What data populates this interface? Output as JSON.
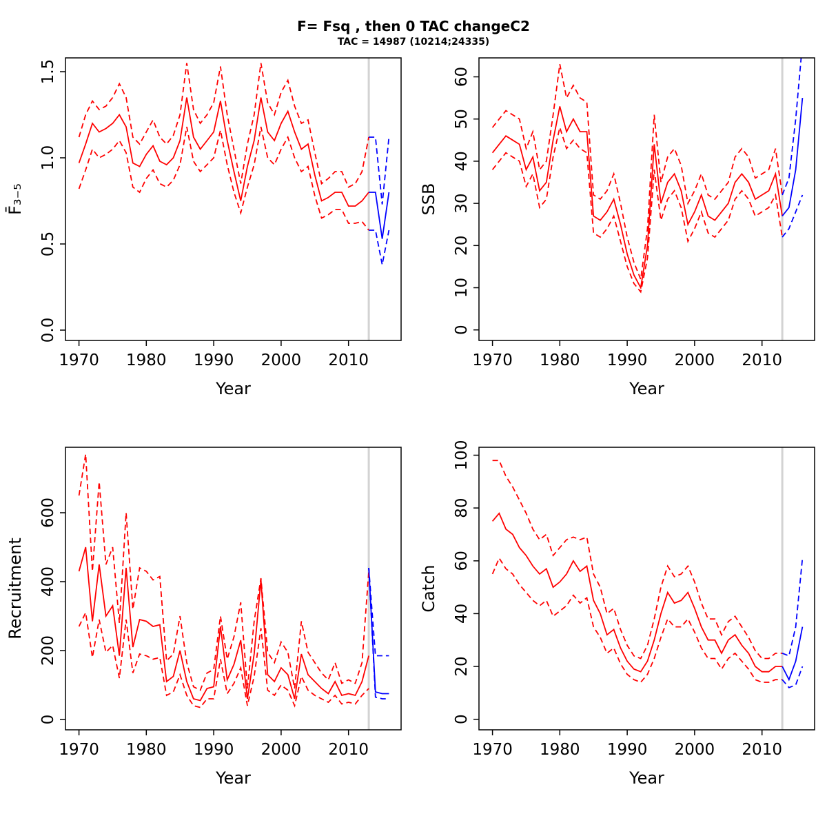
{
  "title": "F= Fsq , then 0 TAC changeC2",
  "subtitle": "TAC = 14987 (10214;24335)",
  "chart_data": {
    "type": "line",
    "layout": "2x2 panel grid, shared x axis style",
    "xlabel": "Year",
    "xlim": [
      1968,
      2017.8
    ],
    "x_ticks": [
      1970,
      1980,
      1990,
      2000,
      2010
    ],
    "hist_start_year": 1970,
    "proj_start_year": 2013,
    "divider_year": 2013,
    "colors": {
      "historical": "#ff0000",
      "projection": "#0000ff",
      "divider": "#d3d3d3",
      "axis": "#000000"
    },
    "panels": [
      {
        "name": "fbar",
        "ylabel": "F̄₃₋₅",
        "ylim": [
          -0.06,
          1.58
        ],
        "y_ticks": [
          0,
          0.5,
          1.0,
          1.5
        ],
        "y_tick_labels": [
          "0.0",
          "0.5",
          "1.0",
          "1.5"
        ],
        "hist": {
          "median": [
            0.97,
            1.08,
            1.2,
            1.15,
            1.17,
            1.2,
            1.25,
            1.18,
            0.97,
            0.95,
            1.02,
            1.07,
            0.98,
            0.96,
            1.0,
            1.1,
            1.35,
            1.12,
            1.05,
            1.1,
            1.15,
            1.33,
            1.1,
            0.92,
            0.75,
            0.95,
            1.1,
            1.35,
            1.15,
            1.1,
            1.2,
            1.27,
            1.15,
            1.05,
            1.08,
            0.9,
            0.75,
            0.77,
            0.8,
            0.8,
            0.72,
            0.72,
            0.75,
            0.8
          ],
          "hi": [
            1.12,
            1.25,
            1.33,
            1.28,
            1.3,
            1.35,
            1.43,
            1.35,
            1.12,
            1.08,
            1.15,
            1.22,
            1.12,
            1.08,
            1.13,
            1.25,
            1.55,
            1.28,
            1.2,
            1.25,
            1.32,
            1.53,
            1.25,
            1.05,
            0.85,
            1.08,
            1.25,
            1.55,
            1.32,
            1.25,
            1.38,
            1.45,
            1.3,
            1.2,
            1.22,
            1.03,
            0.85,
            0.88,
            0.92,
            0.92,
            0.83,
            0.85,
            0.92,
            1.12
          ],
          "lo": [
            0.82,
            0.93,
            1.05,
            1.0,
            1.02,
            1.05,
            1.1,
            1.03,
            0.83,
            0.8,
            0.88,
            0.93,
            0.85,
            0.83,
            0.87,
            0.96,
            1.18,
            0.98,
            0.92,
            0.96,
            1.0,
            1.16,
            0.96,
            0.8,
            0.68,
            0.83,
            0.96,
            1.18,
            1.0,
            0.96,
            1.05,
            1.12,
            1.0,
            0.92,
            0.95,
            0.78,
            0.65,
            0.67,
            0.7,
            0.7,
            0.62,
            0.62,
            0.63,
            0.58
          ]
        },
        "proj": {
          "median": [
            0.8,
            0.8,
            0.53,
            0.8
          ],
          "hi": [
            1.12,
            1.12,
            0.73,
            1.12
          ],
          "lo": [
            0.58,
            0.58,
            0.38,
            0.58
          ]
        }
      },
      {
        "name": "ssb",
        "ylabel": "SSB",
        "ylim": [
          -2.5,
          64.5
        ],
        "y_ticks": [
          0,
          10,
          20,
          30,
          40,
          50,
          60
        ],
        "y_tick_labels": [
          "0",
          "10",
          "20",
          "30",
          "40",
          "50",
          "60"
        ],
        "hist": {
          "median": [
            42,
            44,
            46,
            45,
            44,
            38,
            41,
            33,
            35,
            45,
            53,
            47,
            50,
            47,
            47,
            27,
            26,
            28,
            31,
            25,
            18,
            13,
            10,
            20,
            44,
            30,
            35,
            37,
            33,
            25,
            28,
            32,
            27,
            26,
            28,
            30,
            35,
            37,
            35,
            31,
            32,
            33,
            37,
            27
          ],
          "hi": [
            48,
            50,
            52,
            51,
            50,
            43,
            47,
            38,
            40,
            51,
            63,
            55,
            58,
            55,
            54,
            32,
            31,
            33,
            37,
            30,
            22,
            16,
            12,
            24,
            51,
            35,
            41,
            43,
            39,
            30,
            33,
            37,
            32,
            31,
            33,
            35,
            41,
            43,
            41,
            36,
            37,
            38,
            43,
            32
          ],
          "lo": [
            38,
            40,
            42,
            41,
            40,
            34,
            37,
            29,
            31,
            41,
            48,
            43,
            45,
            43,
            42,
            23,
            22,
            24,
            27,
            21,
            15,
            11,
            9,
            17,
            38,
            26,
            31,
            33,
            29,
            21,
            24,
            28,
            23,
            22,
            24,
            26,
            31,
            33,
            31,
            27,
            28,
            29,
            32,
            22
          ]
        },
        "proj": {
          "median": [
            27,
            29,
            38,
            55
          ],
          "hi": [
            32,
            36,
            50,
            68
          ],
          "lo": [
            22,
            24,
            28,
            32
          ]
        }
      },
      {
        "name": "recruitment",
        "ylabel": "Recruitment",
        "ylim": [
          -30,
          790
        ],
        "y_ticks": [
          0,
          200,
          400,
          600
        ],
        "y_tick_labels": [
          "0",
          "200",
          "400",
          "600"
        ],
        "hist": {
          "median": [
            430,
            500,
            285,
            450,
            300,
            330,
            185,
            440,
            210,
            290,
            285,
            270,
            275,
            110,
            125,
            200,
            110,
            60,
            55,
            90,
            95,
            270,
            115,
            160,
            230,
            60,
            190,
            405,
            130,
            110,
            150,
            130,
            60,
            190,
            130,
            110,
            90,
            75,
            110,
            70,
            75,
            70,
            110,
            185
          ],
          "hi": [
            650,
            770,
            430,
            690,
            450,
            500,
            280,
            600,
            320,
            440,
            430,
            405,
            415,
            170,
            190,
            300,
            165,
            95,
            85,
            135,
            145,
            300,
            175,
            240,
            340,
            90,
            285,
            410,
            195,
            165,
            225,
            195,
            90,
            285,
            195,
            165,
            135,
            115,
            165,
            105,
            115,
            105,
            165,
            430
          ],
          "lo": [
            270,
            310,
            180,
            290,
            195,
            215,
            120,
            290,
            135,
            190,
            185,
            175,
            180,
            70,
            80,
            130,
            70,
            40,
            35,
            60,
            60,
            175,
            75,
            105,
            150,
            40,
            125,
            265,
            85,
            70,
            100,
            85,
            40,
            125,
            85,
            70,
            60,
            50,
            70,
            45,
            50,
            45,
            70,
            90
          ]
        },
        "proj": {
          "median": [
            440,
            80,
            75,
            75
          ],
          "hi": [
            440,
            185,
            185,
            185
          ],
          "lo": [
            440,
            65,
            60,
            60
          ]
        }
      },
      {
        "name": "catch",
        "ylabel": "Catch",
        "ylim": [
          -4,
          103
        ],
        "y_ticks": [
          0,
          20,
          40,
          60,
          80,
          100
        ],
        "y_tick_labels": [
          "0",
          "20",
          "40",
          "60",
          "80",
          "100"
        ],
        "hist": {
          "median": [
            75,
            78,
            72,
            70,
            65,
            62,
            58,
            55,
            57,
            50,
            52,
            55,
            60,
            56,
            58,
            45,
            40,
            32,
            34,
            27,
            22,
            19,
            18,
            22,
            30,
            40,
            48,
            44,
            45,
            48,
            42,
            35,
            30,
            30,
            25,
            30,
            32,
            28,
            25,
            20,
            18,
            18,
            20,
            20
          ],
          "hi": [
            98,
            98,
            92,
            88,
            83,
            78,
            72,
            68,
            70,
            62,
            65,
            68,
            69,
            68,
            69,
            55,
            50,
            40,
            42,
            34,
            28,
            24,
            23,
            28,
            38,
            50,
            58,
            54,
            55,
            58,
            52,
            44,
            38,
            38,
            32,
            37,
            39,
            35,
            31,
            26,
            23,
            23,
            25,
            25
          ],
          "lo": [
            55,
            61,
            57,
            55,
            51,
            48,
            45,
            43,
            45,
            39,
            41,
            43,
            47,
            44,
            46,
            35,
            31,
            25,
            27,
            21,
            17,
            15,
            14,
            17,
            23,
            31,
            38,
            35,
            35,
            38,
            33,
            27,
            23,
            23,
            19,
            23,
            25,
            22,
            19,
            15,
            14,
            14,
            15,
            15
          ]
        },
        "proj": {
          "median": [
            20,
            15,
            22,
            35
          ],
          "hi": [
            25,
            24,
            35,
            61
          ],
          "lo": [
            15,
            12,
            13,
            20
          ]
        }
      }
    ]
  }
}
